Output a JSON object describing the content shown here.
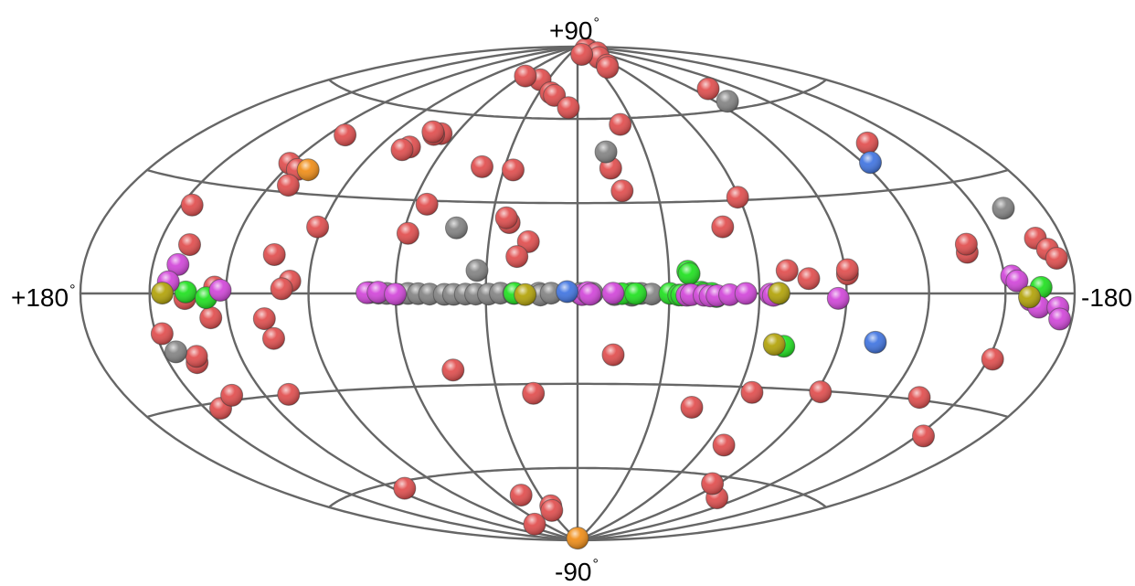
{
  "chart_data": {
    "type": "scatter",
    "projection": "aitoff-hammer-allsky",
    "labels": {
      "top": "+90",
      "bottom": "-90",
      "left": "+180",
      "right": "-180",
      "degree": "°"
    },
    "grid": {
      "meridians_step_deg": 30,
      "parallels_deg": [
        -60,
        -30,
        0,
        30,
        60
      ]
    },
    "colors": {
      "red": "#e04848",
      "grey": "#808080",
      "green": "#18e018",
      "magenta": "#d040d8",
      "olive": "#b0a000",
      "blue": "#3a70e0",
      "orange": "#f08a10",
      "grid": "#666666"
    },
    "series": [
      {
        "class": "red",
        "points": [
          [
            -82.2,
            88.2
          ],
          [
            -78.4,
            88.5
          ],
          [
            -80.4,
            86.4
          ],
          [
            -55.6,
            84.5
          ],
          [
            -48.6,
            81.1
          ],
          [
            -45,
            80.2
          ],
          [
            -15.8,
            86.4
          ],
          [
            -100.6,
            67.6
          ],
          [
            37.8,
            75
          ],
          [
            57.1,
            76
          ],
          [
            21,
            70
          ],
          [
            17.4,
            69
          ],
          [
            5.8,
            64.3
          ],
          [
            -22.9,
            57.7
          ],
          [
            -132.9,
            43.8
          ],
          [
            -137.2,
            11.2
          ],
          [
            -138,
            13.4
          ],
          [
            -90.7,
            5.9
          ],
          [
            -90.9,
            7.2
          ],
          [
            -50.4,
            21.5
          ],
          [
            -13.6,
            42
          ],
          [
            -16.8,
            34.1
          ],
          [
            -59.5,
            31
          ],
          [
            -69.8,
            7.2
          ],
          [
            -77,
            4.6
          ],
          [
            -168,
            13.6
          ],
          [
            -171.3,
            10.7
          ],
          [
            -174.1,
            8.4
          ],
          [
            26.2,
            41.2
          ],
          [
            39.4,
            42
          ],
          [
            76.2,
            47.3
          ],
          [
            78.4,
            46.2
          ],
          [
            67.3,
            52.6
          ],
          [
            70.5,
            52.1
          ],
          [
            72.2,
            53
          ],
          [
            112,
            48.7
          ],
          [
            120.9,
            38.4
          ],
          [
            114.9,
            36.9
          ],
          [
            112.7,
            32.1
          ],
          [
            91.6,
            20.3
          ],
          [
            58.4,
            19.2
          ],
          [
            54.9,
            28.8
          ],
          [
            23.8,
            23.3
          ],
          [
            25,
            24.9
          ],
          [
            16.6,
            17
          ],
          [
            20.1,
            12.1
          ],
          [
            145.6,
            23.8
          ],
          [
            137.6,
            13.3
          ],
          [
            104,
            11.5
          ],
          [
            124.4,
            1.8
          ],
          [
            96.8,
            3.7
          ],
          [
            99.6,
            1.4
          ],
          [
            135.9,
            -1.4
          ],
          [
            126.6,
            -6.8
          ],
          [
            106.6,
            -7.4
          ],
          [
            104.9,
            -13.3
          ],
          [
            147.5,
            -10.6
          ],
          [
            138.4,
            -18.9
          ],
          [
            137.3,
            -17.2
          ],
          [
            143.3,
            -31.6
          ],
          [
            133.6,
            -28.6
          ],
          [
            110.3,
            -30
          ],
          [
            44,
            -24.9
          ],
          [
            -12.2,
            -20.2
          ],
          [
            16.5,
            -33.2
          ],
          [
            -105.9,
            -67
          ],
          [
            -86.5,
            -62.8
          ],
          [
            -68.5,
            -49.6
          ],
          [
            -44.8,
            -37.4
          ],
          [
            -65.4,
            -31.7
          ],
          [
            -91.5,
            -30.3
          ],
          [
            -132.7,
            -29.3
          ],
          [
            -151.9,
            -17.2
          ],
          [
            -152.9,
            -38.9
          ],
          [
            113.4,
            -62.2
          ],
          [
            75.4,
            -81.4
          ],
          [
            44.4,
            -69.8
          ],
          [
            26.5,
            -74.7
          ],
          [
            28.7,
            -76.6
          ]
        ]
      },
      {
        "class": "grey",
        "points": [
          [
            -97.3,
            62.7
          ],
          [
            -12.6,
            47.8
          ],
          [
            41.9,
            21.3
          ],
          [
            33.1,
            7.5
          ],
          [
            -161.8,
            21.7
          ],
          [
            144.8,
            -15.6
          ],
          [
            68.9,
            0.3
          ],
          [
            65.8,
            0.1
          ],
          [
            63,
            0
          ],
          [
            59.5,
            -0.3
          ],
          [
            55.8,
            0
          ],
          [
            52.4,
            -0.1
          ],
          [
            48.6,
            -0.2
          ],
          [
            43.7,
            -0.3
          ],
          [
            40.6,
            -0.3
          ],
          [
            36.7,
            -0.2
          ],
          [
            33.3,
            -0.2
          ],
          [
            29.1,
            -0.2
          ],
          [
            25.2,
            0.1
          ],
          [
            20.8,
            0
          ],
          [
            12.6,
            0.1
          ],
          [
            12.1,
            -0.5
          ],
          [
            8.6,
            0.1
          ],
          [
            -0.8,
            0
          ],
          [
            -4.8,
            0.1
          ],
          [
            -12,
            -0.4
          ],
          [
            -17.7,
            -0.6
          ],
          [
            -20.7,
            0
          ],
          [
            -24.2,
            -0.2
          ]
        ]
      },
      {
        "class": "green",
        "points": [
          [
            -36.3,
            7.2
          ],
          [
            -36.7,
            6.4
          ],
          [
            135.5,
            0.4
          ],
          [
            127.6,
            -1.2
          ],
          [
            -165.1,
            1.5
          ],
          [
            -66.5,
            -0.1
          ],
          [
            -70.6,
            -16.6
          ],
          [
            -17.6,
            0
          ],
          [
            -14.5,
            -0.1
          ],
          [
            -19,
            -0.1
          ],
          [
            -30.2,
            0
          ],
          [
            -33.1,
            -0.5
          ],
          [
            -34.1,
            -0.5
          ],
          [
            20.6,
            0.1
          ],
          [
            -40.5,
            0.4
          ],
          [
            -41.2,
            -0.2
          ],
          [
            -41.7,
            0
          ],
          [
            -44,
            0
          ],
          [
            -45.6,
            -1
          ]
        ]
      },
      {
        "class": "magenta",
        "points": [
          [
            139.8,
            7.8
          ],
          [
            142.6,
            3.1
          ],
          [
            122.2,
            0.9
          ],
          [
            -153,
            4.5
          ],
          [
            -155,
            3.2
          ],
          [
            -160.5,
            -1.6
          ],
          [
            -164.3,
            -3.4
          ],
          [
            -172.8,
            -3.4
          ],
          [
            -174.4,
            -6.1
          ],
          [
            69.7,
            0.2
          ],
          [
            65.9,
            0.4
          ],
          [
            60.1,
            -0.2
          ],
          [
            -36.6,
            -0.3
          ],
          [
            -35.8,
            -0.6
          ],
          [
            -37.2,
            -0.4
          ],
          [
            -41.5,
            -0.6
          ],
          [
            -43.5,
            -0.8
          ],
          [
            -45.8,
            -0.7
          ],
          [
            -50,
            -0.4
          ],
          [
            -55.4,
            0
          ],
          [
            -63.7,
            -0.2
          ],
          [
            -64.7,
            -0.6
          ],
          [
            -87.1,
            -1.5
          ],
          [
            -1.5,
            -0.4
          ],
          [
            -3.3,
            0.3
          ],
          [
            -4.1,
            -0.3
          ],
          [
            -11.6,
            0.1
          ]
        ]
      },
      {
        "class": "olive",
        "points": [
          [
            -67.1,
            -16.1
          ],
          [
            -66.6,
            0.1
          ],
          [
            -160,
            -0.9
          ],
          [
            144.8,
            0.1
          ],
          [
            17.1,
            -0.4
          ]
        ]
      },
      {
        "class": "blue",
        "points": [
          [
            -123.4,
            38.4
          ],
          [
            -103.1,
            -14.5
          ],
          [
            3.4,
            0.6
          ]
        ]
      },
      {
        "class": "orange",
        "points": [
          [
            110.3,
            37.2
          ],
          [
            0,
            -89
          ]
        ]
      }
    ]
  }
}
